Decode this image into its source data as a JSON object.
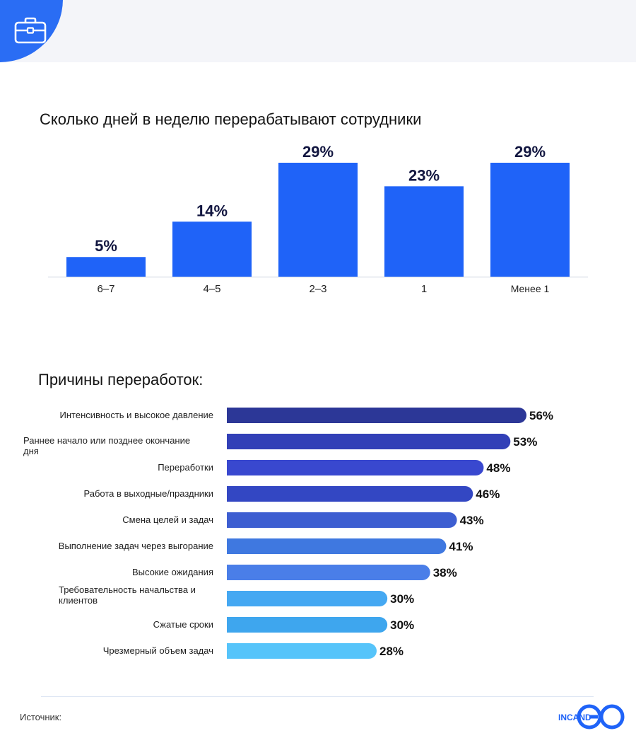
{
  "header": {
    "icon": "briefcase-icon",
    "accent": "#2a6df4"
  },
  "chart_data": [
    {
      "type": "bar",
      "title": "Сколько дней в неделю перерабатывают сотрудники",
      "categories": [
        "6–7",
        "4–5",
        "2–3",
        "1",
        "Менее 1"
      ],
      "values": [
        5,
        14,
        29,
        23,
        29
      ],
      "value_labels": [
        "5%",
        "14%",
        "29%",
        "23%",
        "29%"
      ],
      "ylim": [
        0,
        29
      ],
      "grid": false,
      "color": "#1f63f8"
    },
    {
      "type": "bar",
      "orientation": "horizontal",
      "title": "Причины переработок:",
      "categories": [
        "Интенсивность и высокое давление",
        "Раннее начало или позднее окончание дня",
        "Переработки",
        "Работа в выходные/праздники",
        "Смена целей и задач",
        "Выполнение задач через выгорание",
        "Высокие ожидания",
        "Требовательность начальства и клиентов",
        "Сжатые сроки",
        "Чрезмерный объем задач"
      ],
      "values": [
        56,
        53,
        48,
        46,
        43,
        41,
        38,
        30,
        30,
        28
      ],
      "value_labels": [
        "56%",
        "53%",
        "48%",
        "46%",
        "43%",
        "41%",
        "38%",
        "30%",
        "30%",
        "28%"
      ],
      "colors": [
        "#2c3797",
        "#3240b7",
        "#3948cf",
        "#3347c3",
        "#3d5ed1",
        "#3f78e0",
        "#4a7ee8",
        "#45a8f2",
        "#3ea6ee",
        "#56c4fa"
      ],
      "grid": false
    }
  ],
  "footer": {
    "source_label": "Источник:",
    "logo_text": "INCAND",
    "logo_icon": "go-logo-icon",
    "logo_color": "#1f63f8"
  }
}
